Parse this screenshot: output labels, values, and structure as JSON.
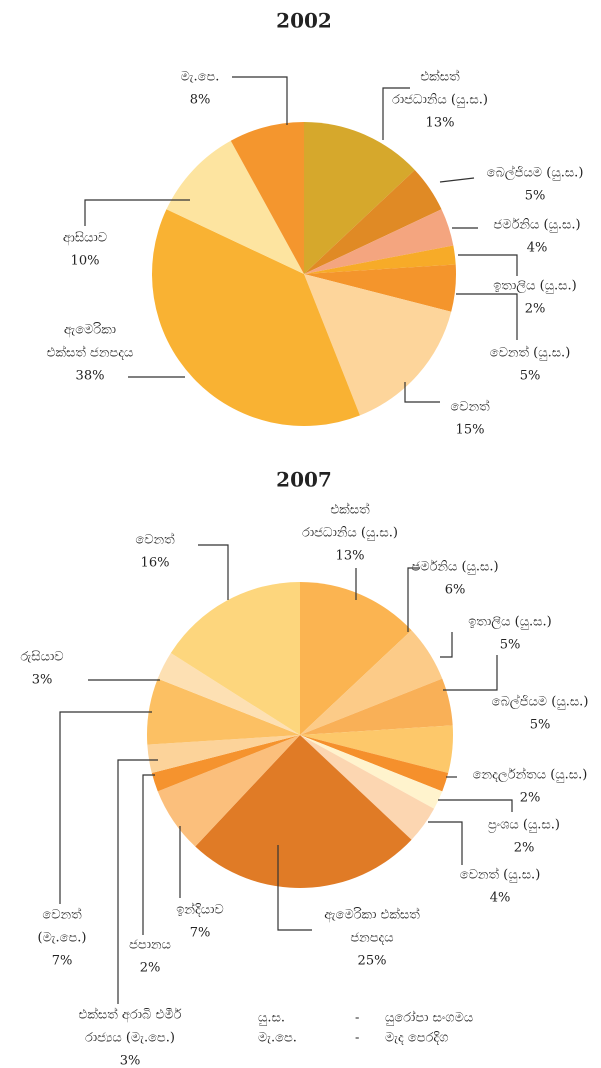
{
  "chart_data": [
    {
      "type": "pie",
      "title": "2002",
      "categories": [
        [
          "එක්සත්",
          "රාජධානිය (යු.ස.)"
        ],
        [
          "බෙල්ජියම (යු.ස.)"
        ],
        [
          "ජර්මනිය (යු.ස.)"
        ],
        [
          "ඉතාලිය (යු.ස.)"
        ],
        [
          "වෙනත් (යු.ස.)"
        ],
        [
          "වෙනත්"
        ],
        [
          "ඇමෙරිකා",
          "එක්සත් ජනපදය"
        ],
        [
          "ආසියාව"
        ],
        [
          "මැ.පෙ."
        ]
      ],
      "values": [
        13,
        5,
        4,
        2,
        5,
        15,
        38,
        10,
        8
      ],
      "value_labels": [
        "13%",
        "5%",
        "4%",
        "2%",
        "5%",
        "15%",
        "38%",
        "10%",
        "8%"
      ],
      "colors": [
        "#d6a82c",
        "#e08a25",
        "#f4a57f",
        "#f7ab28",
        "#f4952c",
        "#fdd59b",
        "#f9b233",
        "#fde4a0",
        "#f4962e"
      ]
    },
    {
      "type": "pie",
      "title": "2007",
      "categories": [
        [
          "එක්සත්",
          "රාජධානිය (යු.ස.)"
        ],
        [
          "ජර්මනිය (යු.ස.)"
        ],
        [
          "ඉතාලිය (යු.ස.)"
        ],
        [
          "බෙල්ජියම (යු.ස.)"
        ],
        [
          "නෙදර්ලන්තය (යු.ස.)"
        ],
        [
          "ප්‍රංශය (යු.ස.)"
        ],
        [
          "වෙනත් (යු.ස.)"
        ],
        [
          "ඇමෙරිකා එක්සත්",
          "ජනපදය"
        ],
        [
          "ඉන්දියාව"
        ],
        [
          "ජපානය"
        ],
        [
          "එක්සත් අරාබි එමීර්",
          "රාජ්‍යය (මැ.පෙ.)"
        ],
        [
          "වෙනත්",
          "(මැ.පෙ.)"
        ],
        [
          "රුසියාව"
        ],
        [
          "වෙනත්"
        ]
      ],
      "values": [
        13,
        6,
        5,
        5,
        2,
        2,
        4,
        25,
        7,
        2,
        3,
        7,
        3,
        16
      ],
      "value_labels": [
        "13%",
        "6%",
        "5%",
        "5%",
        "2%",
        "2%",
        "4%",
        "25%",
        "7%",
        "2%",
        "3%",
        "7%",
        "3%",
        "16%"
      ],
      "colors": [
        "#fbb451",
        "#fccb88",
        "#f9b057",
        "#fdc86a",
        "#f5902c",
        "#fff3cd",
        "#fcd6b1",
        "#e07b26",
        "#fbbf7c",
        "#f5932e",
        "#fcd39a",
        "#fcc063",
        "#fde0b3",
        "#fdd67d"
      ]
    }
  ],
  "notes": [
    {
      "abbr": "යු.ස.",
      "dash": "-",
      "meaning": "යුරෝපා සංගමය"
    },
    {
      "abbr": "මැ.පෙ.",
      "dash": "-",
      "meaning": "මැද පෙරදිග"
    }
  ]
}
